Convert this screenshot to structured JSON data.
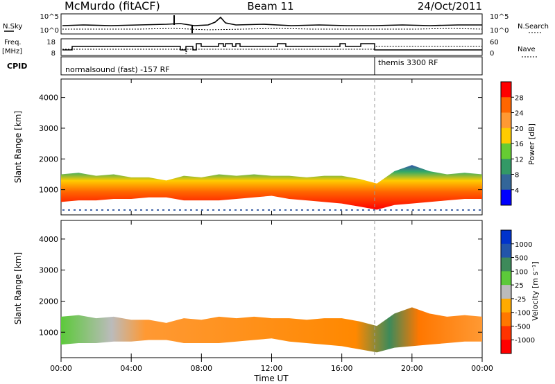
{
  "header": {
    "station": "McMurdo (fitACF)",
    "beam": "Beam 11",
    "date": "24/Oct/2011"
  },
  "top_panels": {
    "nsky_label": "N.Sky",
    "nsky_ticks": [
      "10^5",
      "10^0"
    ],
    "nsearch_label": "N.Search",
    "nsearch_ticks": [
      "10^5",
      "10^0"
    ],
    "freq_label_top": "Freq.",
    "freq_label_bottom": "[MHz]",
    "freq_ticks": [
      "18",
      "8"
    ],
    "nave_label": "Nave",
    "nave_ticks": [
      "60",
      "0"
    ],
    "cpid_label": "CPID",
    "cpid_segments": [
      {
        "text": "normalsound (fast) -157 RF",
        "start_hour": 0,
        "end_hour": 18
      },
      {
        "text": "themis 3300 RF",
        "start_hour": 18,
        "end_hour": 24
      }
    ]
  },
  "power_colorbar": {
    "label": "Power [dB]",
    "ticks": [
      "28",
      "24",
      "20",
      "16",
      "12",
      "8",
      "4"
    ],
    "colors": [
      "#ff0000",
      "#ff6600",
      "#ff9933",
      "#ffcc00",
      "#66cc33",
      "#339966",
      "#336699",
      "#0000ff"
    ]
  },
  "velocity_colorbar": {
    "label": "Velocity [m s⁻¹]",
    "ticks": [
      "1000",
      "500",
      "100",
      "25",
      "-25",
      "-100",
      "-500",
      "-1000"
    ],
    "colors": [
      "#0033cc",
      "#2255aa",
      "#3d8a5a",
      "#5cc93a",
      "#bbbbbb",
      "#ffaa00",
      "#ff7700",
      "#ff3300",
      "#ff0000"
    ]
  },
  "chart_data": {
    "type": "heatmap",
    "xlabel": "Time UT",
    "ylabel": "Slant Range [km]",
    "x_ticks": [
      "00:00",
      "04:00",
      "08:00",
      "12:00",
      "16:00",
      "20:00",
      "00:00"
    ],
    "x_range_hours": [
      0,
      24
    ],
    "y_ticks": [
      "1000",
      "2000",
      "3000",
      "4000"
    ],
    "y_range_km": [
      180,
      4600
    ],
    "mode_change_hour": 18.0,
    "scatter_band": [
      {
        "hour": 0.0,
        "lower_km": 600,
        "upper_km": 1500
      },
      {
        "hour": 1.0,
        "lower_km": 650,
        "upper_km": 1550
      },
      {
        "hour": 2.0,
        "lower_km": 650,
        "upper_km": 1450
      },
      {
        "hour": 3.0,
        "lower_km": 700,
        "upper_km": 1500
      },
      {
        "hour": 4.0,
        "lower_km": 700,
        "upper_km": 1400
      },
      {
        "hour": 5.0,
        "lower_km": 750,
        "upper_km": 1400
      },
      {
        "hour": 6.0,
        "lower_km": 750,
        "upper_km": 1300
      },
      {
        "hour": 7.0,
        "lower_km": 650,
        "upper_km": 1450
      },
      {
        "hour": 8.0,
        "lower_km": 650,
        "upper_km": 1400
      },
      {
        "hour": 9.0,
        "lower_km": 650,
        "upper_km": 1500
      },
      {
        "hour": 10.0,
        "lower_km": 700,
        "upper_km": 1450
      },
      {
        "hour": 11.0,
        "lower_km": 750,
        "upper_km": 1500
      },
      {
        "hour": 12.0,
        "lower_km": 800,
        "upper_km": 1450
      },
      {
        "hour": 13.0,
        "lower_km": 700,
        "upper_km": 1450
      },
      {
        "hour": 14.0,
        "lower_km": 650,
        "upper_km": 1400
      },
      {
        "hour": 15.0,
        "lower_km": 600,
        "upper_km": 1450
      },
      {
        "hour": 16.0,
        "lower_km": 550,
        "upper_km": 1450
      },
      {
        "hour": 17.0,
        "lower_km": 450,
        "upper_km": 1350
      },
      {
        "hour": 18.0,
        "lower_km": 350,
        "upper_km": 1200
      },
      {
        "hour": 19.0,
        "lower_km": 500,
        "upper_km": 1600
      },
      {
        "hour": 20.0,
        "lower_km": 550,
        "upper_km": 1800
      },
      {
        "hour": 21.0,
        "lower_km": 600,
        "upper_km": 1600
      },
      {
        "hour": 22.0,
        "lower_km": 650,
        "upper_km": 1500
      },
      {
        "hour": 23.0,
        "lower_km": 700,
        "upper_km": 1550
      },
      {
        "hour": 24.0,
        "lower_km": 700,
        "upper_km": 1500
      }
    ]
  }
}
